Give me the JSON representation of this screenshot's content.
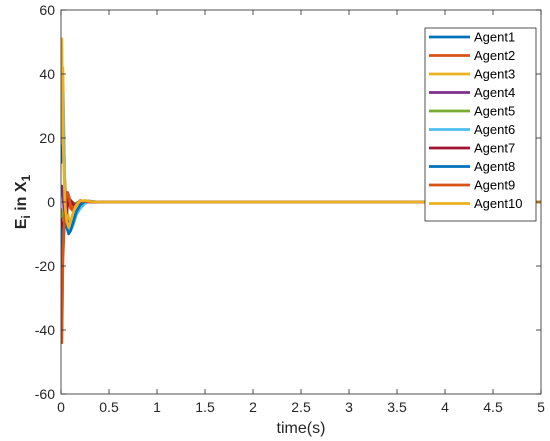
{
  "chart_data": {
    "type": "line",
    "title": "",
    "xlabel": "time(s)",
    "ylabel_main": "E",
    "ylabel_sub": "i",
    "ylabel_mid": " in X",
    "ylabel_sub2": "1",
    "xlim": [
      0,
      5
    ],
    "ylim": [
      -60,
      60
    ],
    "xticks": [
      0,
      0.5,
      1,
      1.5,
      2,
      2.5,
      3,
      3.5,
      4,
      4.5,
      5
    ],
    "xtick_labels": [
      "0",
      "0.5",
      "1",
      "1.5",
      "2",
      "2.5",
      "3",
      "3.5",
      "4",
      "4.5",
      "5"
    ],
    "yticks": [
      -60,
      -40,
      -20,
      0,
      20,
      40,
      60
    ],
    "ytick_labels": [
      "-60",
      "-40",
      "-20",
      "0",
      "20",
      "40",
      "60"
    ],
    "grid": false,
    "legend_position": "top-right",
    "series": [
      {
        "name": "Agent1",
        "color": "#0072BD",
        "x": [
          0,
          0.02,
          0.04,
          0.06,
          0.08,
          0.1,
          0.13,
          0.16,
          0.2,
          0.25,
          0.3,
          0.4,
          0.5,
          5
        ],
        "y": [
          12,
          34,
          6,
          -4,
          -8,
          -9,
          -6,
          -3,
          -1,
          0.4,
          0.3,
          0,
          0,
          0
        ]
      },
      {
        "name": "Agent2",
        "color": "#D95319",
        "x": [
          0,
          0.01,
          0.02,
          0.04,
          0.06,
          0.08,
          0.1,
          0.13,
          0.16,
          0.2,
          0.25,
          0.3,
          0.4,
          0.5,
          5
        ],
        "y": [
          -25,
          -44,
          -18,
          -4,
          2,
          1,
          -2,
          -3,
          -1,
          0.5,
          0.2,
          0,
          0,
          0,
          0
        ]
      },
      {
        "name": "Agent3",
        "color": "#EDB120",
        "x": [
          0,
          0.02,
          0.04,
          0.06,
          0.08,
          0.1,
          0.13,
          0.16,
          0.2,
          0.25,
          0.3,
          0.4,
          0.5,
          5
        ],
        "y": [
          20,
          42,
          8,
          -2,
          -5,
          -6,
          -4,
          -2,
          -0.5,
          0.3,
          0.2,
          0,
          0,
          0
        ]
      },
      {
        "name": "Agent4",
        "color": "#7E2F8E",
        "x": [
          0,
          0.01,
          0.03,
          0.05,
          0.07,
          0.09,
          0.12,
          0.15,
          0.2,
          0.25,
          0.3,
          0.4,
          0.5,
          5
        ],
        "y": [
          3,
          5,
          -2,
          -6,
          3,
          1,
          -1,
          -0.5,
          0.2,
          0.1,
          0,
          0,
          0,
          0
        ]
      },
      {
        "name": "Agent5",
        "color": "#77AC30",
        "x": [
          0,
          0.02,
          0.04,
          0.06,
          0.08,
          0.1,
          0.14,
          0.18,
          0.24,
          0.3,
          0.4,
          0.5,
          5
        ],
        "y": [
          -2,
          -5,
          -3,
          -1,
          1,
          0.5,
          -0.5,
          -0.2,
          0.1,
          0,
          0,
          0,
          0
        ]
      },
      {
        "name": "Agent6",
        "color": "#4DBEEE",
        "x": [
          0,
          0.02,
          0.04,
          0.06,
          0.08,
          0.1,
          0.13,
          0.16,
          0.2,
          0.25,
          0.3,
          0.4,
          0.5,
          5
        ],
        "y": [
          18,
          34,
          2,
          -6,
          -8,
          -9,
          -7,
          -4,
          -2,
          -0.5,
          0.2,
          0,
          0,
          0
        ]
      },
      {
        "name": "Agent7",
        "color": "#A2142F",
        "x": [
          0,
          0.02,
          0.04,
          0.06,
          0.08,
          0.1,
          0.14,
          0.18,
          0.24,
          0.3,
          0.4,
          0.5,
          5
        ],
        "y": [
          -5,
          -9,
          -6,
          -3,
          1,
          0.5,
          -1,
          -0.5,
          0.2,
          0,
          0,
          0,
          0
        ]
      },
      {
        "name": "Agent8",
        "color": "#0072BD",
        "x": [
          0,
          0.01,
          0.02,
          0.04,
          0.06,
          0.08,
          0.1,
          0.13,
          0.16,
          0.2,
          0.25,
          0.3,
          0.4,
          0.5,
          5
        ],
        "y": [
          -8,
          -25,
          -12,
          -6,
          -8,
          -10,
          -9,
          -6,
          -3,
          -1,
          0.3,
          0.2,
          0,
          0,
          0
        ]
      },
      {
        "name": "Agent9",
        "color": "#D95319",
        "x": [
          0,
          0.01,
          0.02,
          0.04,
          0.06,
          0.08,
          0.1,
          0.13,
          0.16,
          0.2,
          0.25,
          0.3,
          0.4,
          0.5,
          5
        ],
        "y": [
          -20,
          -40,
          -15,
          -3,
          3,
          2,
          -1,
          -2,
          -0.8,
          0.4,
          0.2,
          0,
          0,
          0,
          0
        ]
      },
      {
        "name": "Agent10",
        "color": "#EDB120",
        "x": [
          0,
          0.01,
          0.02,
          0.04,
          0.06,
          0.08,
          0.1,
          0.13,
          0.16,
          0.2,
          0.25,
          0.3,
          0.4,
          0.5,
          5
        ],
        "y": [
          30,
          51,
          20,
          0,
          -6,
          -8,
          -6,
          -3,
          -1,
          0.3,
          0.5,
          0.2,
          0,
          0,
          0
        ]
      }
    ]
  }
}
